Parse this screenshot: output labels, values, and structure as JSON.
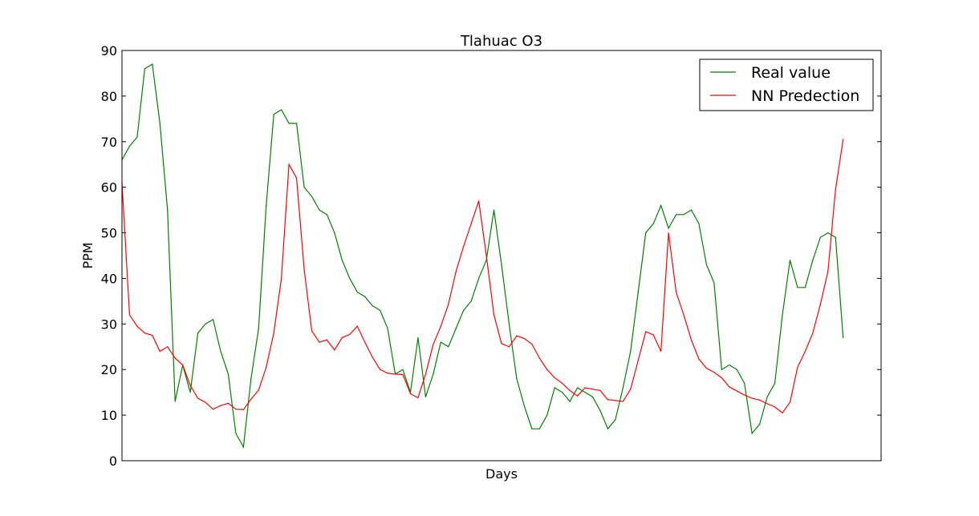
{
  "chart_data": {
    "type": "line",
    "title": "Tlahuac O3",
    "xlabel": "Days",
    "ylabel": "PPM",
    "xlim": [
      0,
      100
    ],
    "ylim": [
      0,
      90
    ],
    "y_ticks": [
      0,
      10,
      20,
      30,
      40,
      50,
      60,
      70,
      80,
      90
    ],
    "x_ticks": [],
    "grid": false,
    "legend_position": "top-right",
    "series": [
      {
        "name": "Real value",
        "color": "#008000",
        "values": [
          66,
          69,
          71,
          86,
          87,
          74,
          55,
          13,
          21,
          15,
          28,
          30,
          31,
          24,
          19,
          6,
          3,
          18,
          29,
          56,
          76,
          77,
          74,
          74,
          60,
          58,
          55,
          54,
          50,
          44,
          40,
          37,
          36,
          34,
          33,
          29,
          19,
          20,
          15,
          27,
          14,
          19,
          26,
          25,
          29,
          33,
          35,
          40,
          44,
          55,
          43,
          30,
          18,
          12,
          7,
          7,
          10,
          16,
          15,
          13,
          16,
          15,
          14,
          11,
          7,
          9,
          16,
          24,
          37,
          50,
          52,
          56,
          51,
          54,
          54,
          55,
          52,
          43,
          39,
          20,
          21,
          20,
          17,
          6,
          8,
          14,
          17,
          32,
          44,
          38,
          38,
          44,
          49,
          50,
          49,
          27
        ]
      },
      {
        "name": "NN Predection",
        "color": "#ff0000",
        "values": [
          61,
          32,
          29.5,
          28,
          27.5,
          24,
          25,
          22.5,
          21,
          16.5,
          13.7,
          12.8,
          11.3,
          12.1,
          12.6,
          11.3,
          11.2,
          13.5,
          15.5,
          20.5,
          28,
          40,
          65,
          62,
          42,
          28.5,
          26,
          26.5,
          24.3,
          27,
          27.7,
          29.5,
          26,
          22.7,
          20,
          19.2,
          19,
          18.9,
          14.7,
          13.8,
          19,
          25.5,
          29.5,
          34.3,
          41.5,
          47,
          52,
          57,
          45,
          32,
          25.7,
          25,
          27.4,
          26.8,
          25.6,
          22.5,
          20,
          18.2,
          17,
          15.4,
          14.2,
          16,
          15.7,
          15.4,
          13.4,
          13.2,
          13,
          15.7,
          22,
          28.3,
          27.6,
          24,
          50,
          37,
          32,
          26.5,
          22.3,
          20.3,
          19.4,
          18.2,
          16.2,
          15.3,
          14.4,
          13.7,
          13.3,
          12.5,
          11.8,
          10.5,
          12.8,
          20.5,
          24,
          28,
          34.3,
          41.5,
          59.5,
          70.5
        ]
      }
    ]
  }
}
